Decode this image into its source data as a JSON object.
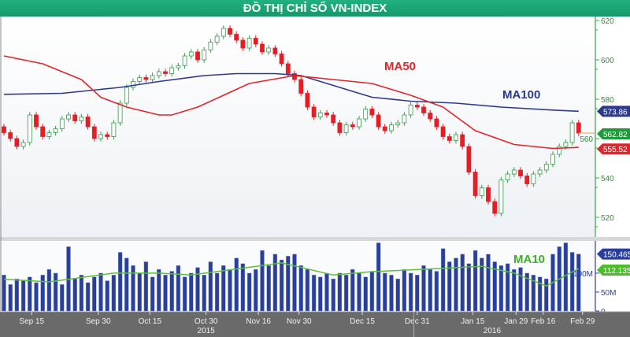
{
  "title": "ĐỒ THỊ CHỈ SỐ VN-INDEX",
  "colors": {
    "title_bg": "#1aa574",
    "up": "#3a9a4a",
    "down": "#e31e24",
    "ma50": "#e0262a",
    "ma100": "#2d3a8c",
    "volume": "#2a3f9a",
    "vol_ma10": "#5fbf3a",
    "date_strip": "#6a6a6a"
  },
  "chart_data": {
    "type": "candlestick",
    "price_axis": {
      "ylim": [
        510,
        622
      ],
      "ticks": [
        520,
        540,
        560,
        580,
        600,
        620
      ],
      "tick_labels": [
        "520",
        "540",
        "560",
        "580",
        "600",
        "620"
      ]
    },
    "volume_axis": {
      "ylim": [
        0,
        185
      ],
      "ticks": [
        0,
        50,
        100
      ],
      "tick_labels": [
        "0",
        "50M",
        "100M"
      ]
    },
    "close": [
      563,
      560,
      556,
      558,
      572,
      566,
      561,
      563,
      565,
      570,
      572,
      569,
      571,
      566,
      560,
      562,
      561,
      568,
      578,
      586,
      589,
      591,
      590,
      592,
      594,
      593,
      596,
      597,
      602,
      604,
      600,
      605,
      609,
      612,
      616,
      613,
      610,
      606,
      611,
      608,
      604,
      606,
      603,
      598,
      593,
      590,
      583,
      576,
      571,
      573,
      572,
      568,
      563,
      567,
      566,
      570,
      575,
      572,
      566,
      564,
      567,
      568,
      572,
      577,
      576,
      573,
      570,
      566,
      561,
      559,
      562,
      556,
      543,
      531,
      535,
      528,
      522,
      539,
      542,
      544,
      541,
      537,
      542,
      544,
      547,
      552,
      556,
      558,
      568,
      562.82
    ],
    "open": [
      566,
      563,
      560,
      556,
      558,
      572,
      566,
      561,
      563,
      565,
      570,
      572,
      569,
      571,
      566,
      560,
      562,
      561,
      568,
      578,
      586,
      589,
      591,
      590,
      592,
      594,
      593,
      596,
      597,
      602,
      604,
      600,
      605,
      609,
      612,
      616,
      613,
      610,
      606,
      611,
      608,
      604,
      606,
      603,
      598,
      593,
      590,
      583,
      576,
      571,
      573,
      572,
      568,
      563,
      567,
      566,
      570,
      575,
      572,
      566,
      564,
      567,
      568,
      572,
      577,
      576,
      573,
      570,
      566,
      561,
      559,
      562,
      556,
      543,
      531,
      535,
      528,
      522,
      539,
      542,
      544,
      541,
      537,
      542,
      544,
      547,
      552,
      556,
      558,
      568
    ],
    "volume_millions": [
      95,
      70,
      85,
      80,
      90,
      75,
      95,
      110,
      100,
      70,
      170,
      85,
      95,
      75,
      90,
      100,
      80,
      95,
      155,
      140,
      120,
      100,
      130,
      90,
      110,
      95,
      105,
      120,
      90,
      100,
      115,
      95,
      130,
      100,
      120,
      110,
      140,
      125,
      100,
      110,
      160,
      120,
      150,
      135,
      145,
      150,
      120,
      110,
      95,
      90,
      100,
      85,
      100,
      95,
      110,
      100,
      90,
      105,
      180,
      100,
      95,
      85,
      110,
      100,
      95,
      120,
      110,
      105,
      165,
      130,
      140,
      150,
      125,
      160,
      140,
      150,
      130,
      120,
      125,
      110,
      115,
      100,
      95,
      90,
      85,
      150,
      170,
      180,
      155,
      150.465
    ],
    "ma50": [
      [
        0,
        602
      ],
      [
        6,
        598
      ],
      [
        12,
        590
      ],
      [
        15,
        581
      ],
      [
        19,
        576
      ],
      [
        24,
        572
      ],
      [
        26,
        572
      ],
      [
        30,
        576
      ],
      [
        34,
        582
      ],
      [
        38,
        588
      ],
      [
        45,
        592
      ],
      [
        51,
        590
      ],
      [
        57,
        588
      ],
      [
        63,
        582
      ],
      [
        68,
        576
      ],
      [
        73,
        564
      ],
      [
        79,
        557
      ],
      [
        85,
        555
      ],
      [
        89,
        555.52
      ]
    ],
    "ma100": [
      [
        0,
        582.5
      ],
      [
        9,
        583
      ],
      [
        18,
        586
      ],
      [
        24,
        589
      ],
      [
        31,
        592
      ],
      [
        36,
        593
      ],
      [
        42,
        593
      ],
      [
        46,
        592
      ],
      [
        51,
        587
      ],
      [
        57,
        581
      ],
      [
        63,
        579
      ],
      [
        70,
        578
      ],
      [
        77,
        576
      ],
      [
        85,
        574.5
      ],
      [
        89,
        573.86
      ]
    ],
    "vol_ma10": [
      [
        0,
        84
      ],
      [
        7,
        77
      ],
      [
        17,
        100
      ],
      [
        24,
        100
      ],
      [
        29,
        95
      ],
      [
        36,
        111
      ],
      [
        43,
        127
      ],
      [
        51,
        95
      ],
      [
        57,
        104
      ],
      [
        66,
        111
      ],
      [
        74,
        118
      ],
      [
        79,
        100
      ],
      [
        84,
        66
      ],
      [
        89,
        112.135
      ]
    ],
    "labels": {
      "ma50": "MA50",
      "ma100": "MA100",
      "ma10": "MA10"
    },
    "last_values": {
      "ma100": "573.86",
      "close": "562.82",
      "ma50": "555.52",
      "volume": "150.465M",
      "vol_ma10": "112.135M"
    },
    "x_ticks": [
      {
        "label": "Sep 15",
        "index": 4.3
      },
      {
        "label": "Sep 30",
        "index": 14.6
      },
      {
        "label": "Oct 15",
        "index": 22.6
      },
      {
        "label": "Oct 30",
        "index": 31.3
      },
      {
        "label": "Nov 16",
        "index": 39.4
      },
      {
        "label": "Nov 30",
        "index": 45.7
      },
      {
        "label": "Dec 15",
        "index": 55.5
      },
      {
        "label": "Dec 31",
        "index": 64
      },
      {
        "label": "Jan 15",
        "index": 72.6
      },
      {
        "label": "Jan 29",
        "index": 79.3
      },
      {
        "label": "Feb 16",
        "index": 83.5
      },
      {
        "label": "Feb 29",
        "index": 89.6
      }
    ],
    "years": [
      {
        "label": "2015",
        "index": 31.3
      },
      {
        "label": "2016",
        "index": 75.6
      }
    ],
    "year_divider_index": 63
  }
}
